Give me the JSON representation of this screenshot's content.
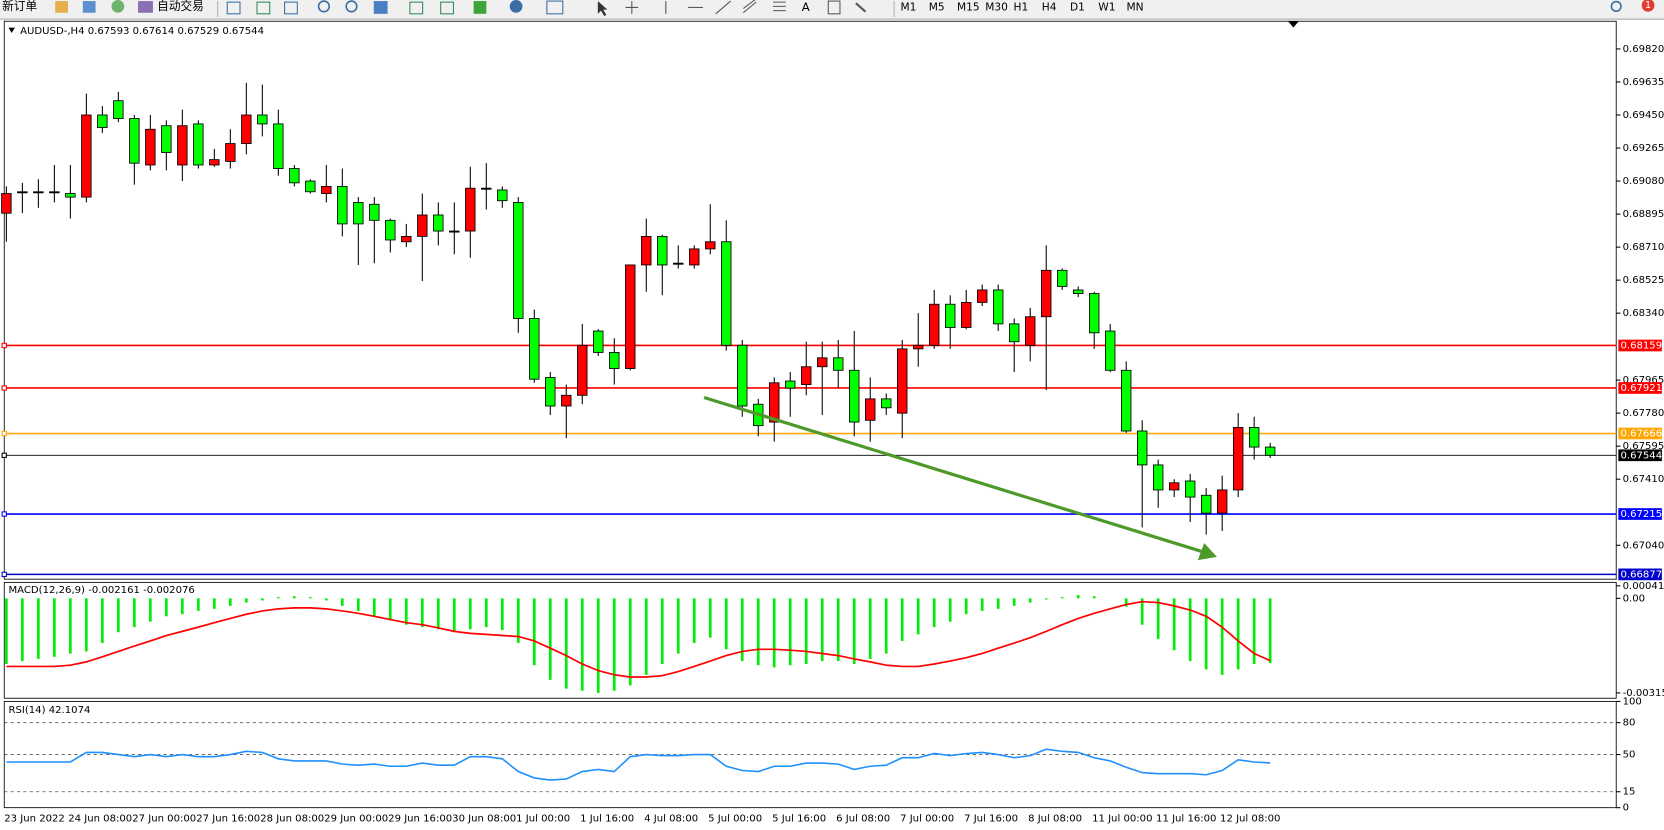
{
  "toolbar": {
    "new_order": "新订单",
    "auto_trading": "自动交易",
    "timeframes": [
      "M1",
      "M5",
      "M15",
      "M30",
      "H1",
      "H4",
      "D1",
      "W1",
      "MN"
    ],
    "notifications": "1"
  },
  "chart_data": [
    {
      "type": "candlestick",
      "title": "AUDUSD-,H4 0.67593 0.67614 0.67529 0.67544",
      "x": [
        "23 Jun 2022",
        null,
        null,
        null,
        "24 Jun 08:00",
        null,
        null,
        null,
        "27 Jun 00:00",
        null,
        null,
        null,
        "27 Jun 16:00",
        null,
        null,
        null,
        "28 Jun 08:00",
        null,
        null,
        null,
        "29 Jun 00:00",
        null,
        null,
        null,
        "29 Jun 16:00",
        null,
        null,
        null,
        "30 Jun 08:00",
        null,
        null,
        null,
        "1 Jul 00:00",
        null,
        null,
        null,
        "1 Jul 16:00",
        null,
        null,
        null,
        "4 Jul 08:00",
        null,
        null,
        null,
        "5 Jul 00:00",
        null,
        null,
        null,
        "5 Jul 16:00",
        null,
        null,
        null,
        "6 Jul 08:00",
        null,
        null,
        null,
        "7 Jul 00:00",
        null,
        null,
        null,
        "7 Jul 16:00",
        null,
        null,
        null,
        "8 Jul 08:00",
        null,
        null,
        null,
        "11 Jul 00:00",
        null,
        null,
        null,
        "11 Jul 16:00",
        null,
        null,
        null,
        "12 Jul 08:00",
        null,
        null,
        null
      ],
      "open": [
        0.689,
        0.6902,
        0.6902,
        0.6902,
        0.6901,
        0.6899,
        0.6945,
        0.6953,
        0.6943,
        0.6917,
        0.6939,
        0.6917,
        0.694,
        0.6917,
        0.6919,
        0.6929,
        0.6945,
        0.694,
        0.6915,
        0.6908,
        0.6901,
        0.6905,
        0.6896,
        0.6895,
        0.6886,
        0.6874,
        0.6877,
        0.6889,
        0.688,
        0.688,
        0.6904,
        0.6903,
        0.6896,
        0.6831,
        0.6798,
        0.6782,
        0.6788,
        0.6824,
        0.6812,
        0.6803,
        0.6861,
        0.6877,
        0.6862,
        0.6861,
        0.687,
        0.6874,
        0.6816,
        0.6783,
        0.6773,
        0.6796,
        0.6794,
        0.6804,
        0.6809,
        0.6802,
        0.6774,
        0.6786,
        0.6778,
        0.6814,
        0.6816,
        0.6839,
        0.6826,
        0.684,
        0.6847,
        0.6828,
        0.6816,
        0.6832,
        0.6858,
        0.6847,
        0.6845,
        0.6824,
        0.6802,
        0.6768,
        0.6749,
        0.6735,
        0.674,
        0.6732,
        0.6722,
        0.6735,
        0.677,
        0.6759
      ],
      "high": [
        0.6905,
        0.6907,
        0.6909,
        0.6917,
        0.6917,
        0.6957,
        0.695,
        0.6958,
        0.6945,
        0.6945,
        0.6942,
        0.6948,
        0.6942,
        0.6926,
        0.6937,
        0.6963,
        0.6962,
        0.6948,
        0.6917,
        0.6909,
        0.6917,
        0.6915,
        0.6899,
        0.6899,
        0.6887,
        0.6884,
        0.6901,
        0.6896,
        0.6896,
        0.6916,
        0.6918,
        0.6905,
        0.6899,
        0.6836,
        0.6801,
        0.6794,
        0.6828,
        0.6825,
        0.682,
        0.6861,
        0.6887,
        0.6878,
        0.6872,
        0.6872,
        0.6895,
        0.6886,
        0.6819,
        0.6786,
        0.6798,
        0.6801,
        0.6818,
        0.6818,
        0.6819,
        0.6824,
        0.6798,
        0.6789,
        0.6819,
        0.6834,
        0.6847,
        0.6844,
        0.6847,
        0.685,
        0.685,
        0.6831,
        0.6837,
        0.6872,
        0.6859,
        0.6849,
        0.6846,
        0.6828,
        0.6807,
        0.6774,
        0.6752,
        0.6741,
        0.6744,
        0.6736,
        0.6743,
        0.6778,
        0.6776,
        0.67614
      ],
      "low": [
        0.6874,
        0.689,
        0.6893,
        0.6896,
        0.6887,
        0.6896,
        0.6935,
        0.6941,
        0.6906,
        0.6914,
        0.6914,
        0.6908,
        0.6915,
        0.6916,
        0.6915,
        0.6923,
        0.6933,
        0.6911,
        0.6905,
        0.6901,
        0.6896,
        0.6877,
        0.6861,
        0.6862,
        0.6868,
        0.6871,
        0.6852,
        0.6872,
        0.6867,
        0.6865,
        0.6892,
        0.6893,
        0.6823,
        0.6795,
        0.6777,
        0.6764,
        0.6783,
        0.681,
        0.6794,
        0.6802,
        0.6846,
        0.6844,
        0.6859,
        0.6859,
        0.6867,
        0.6813,
        0.6776,
        0.6765,
        0.6762,
        0.6776,
        0.6788,
        0.6777,
        0.6792,
        0.6765,
        0.6762,
        0.6777,
        0.6764,
        0.6804,
        0.6814,
        0.6814,
        0.6825,
        0.6838,
        0.6824,
        0.6801,
        0.6807,
        0.6791,
        0.6847,
        0.6843,
        0.6814,
        0.6801,
        0.6767,
        0.6714,
        0.6725,
        0.6731,
        0.6717,
        0.671,
        0.6712,
        0.6731,
        0.6752,
        0.67529
      ],
      "close": [
        0.6901,
        0.6902,
        0.6902,
        0.6902,
        0.6899,
        0.6945,
        0.6938,
        0.6943,
        0.6918,
        0.6937,
        0.6924,
        0.6939,
        0.6917,
        0.692,
        0.6929,
        0.6945,
        0.694,
        0.6915,
        0.6907,
        0.6902,
        0.6905,
        0.6884,
        0.6884,
        0.6886,
        0.6875,
        0.6877,
        0.6889,
        0.688,
        0.688,
        0.6904,
        0.6904,
        0.6897,
        0.6831,
        0.6797,
        0.6782,
        0.6788,
        0.6816,
        0.6812,
        0.6803,
        0.6861,
        0.6877,
        0.6861,
        0.6862,
        0.687,
        0.6874,
        0.6816,
        0.6782,
        0.6771,
        0.6795,
        0.6792,
        0.6804,
        0.6809,
        0.6802,
        0.6773,
        0.6786,
        0.6781,
        0.6814,
        0.6816,
        0.6839,
        0.6826,
        0.684,
        0.6847,
        0.6828,
        0.6818,
        0.6832,
        0.6858,
        0.6849,
        0.6845,
        0.6823,
        0.6802,
        0.6768,
        0.6749,
        0.6735,
        0.6739,
        0.6731,
        0.6722,
        0.6735,
        0.677,
        0.6759,
        0.67544
      ],
      "up_color": "#ff0000",
      "down_color": "#00ff00",
      "ylim": [
        0.6685,
        0.69975
      ],
      "yticks": [
        {
          "value": 0.6982,
          "label": "0.69820"
        },
        0.69635,
        {
          "value": 0.6945,
          "label": "0.69450"
        },
        0.69265,
        {
          "value": 0.6908,
          "label": "0.69080"
        },
        0.68895,
        {
          "value": 0.6871,
          "label": "0.68710"
        },
        0.68525,
        {
          "value": 0.6834,
          "label": "0.68340"
        },
        0.67965,
        {
          "value": 0.6778,
          "label": "0.67780"
        },
        0.67595,
        {
          "value": 0.6741,
          "label": "0.67410"
        },
        {
          "value": 0.6704,
          "label": "0.67040"
        }
      ],
      "hlines": [
        {
          "value": 0.68159,
          "color": "#ff0000"
        },
        {
          "value": 0.67921,
          "color": "#ff0000"
        },
        {
          "value": 0.67666,
          "color": "#ffa500"
        },
        {
          "value": 0.67544,
          "color": "#000000"
        },
        {
          "value": 0.67215,
          "color": "#0000ff"
        },
        {
          "value": 0.66877,
          "color": "#0000cc"
        }
      ]
    },
    {
      "type": "macd",
      "title": "MACD(12,26,9) -0.002161 -0.002076",
      "values": [
        -0.00219,
        -0.00209,
        -0.00202,
        -0.00195,
        -0.00184,
        -0.00177,
        -0.00149,
        -0.00113,
        -0.00096,
        -0.00078,
        -0.0006,
        -0.00053,
        -0.00042,
        -0.00035,
        -0.00025,
        -0.00014,
        -7e-05,
        4e-05,
        7e-05,
        4e-05,
        -7e-05,
        -0.00025,
        -0.00042,
        -0.0006,
        -0.00074,
        -0.00088,
        -0.00096,
        -0.00103,
        -0.0011,
        -0.00103,
        -0.00096,
        -0.00106,
        -0.00149,
        -0.00223,
        -0.00272,
        -0.00301,
        -0.00308,
        -0.00315,
        -0.00308,
        -0.0029,
        -0.00255,
        -0.00219,
        -0.00184,
        -0.00149,
        -0.00131,
        -0.0017,
        -0.00209,
        -0.00223,
        -0.0023,
        -0.00223,
        -0.00219,
        -0.00209,
        -0.00209,
        -0.00219,
        -0.00202,
        -0.00184,
        -0.00142,
        -0.0012,
        -0.00096,
        -0.00078,
        -0.00053,
        -0.00042,
        -0.00035,
        -0.00025,
        -0.00014,
        -4e-05,
        4e-05,
        0.00011,
        7e-05,
        0,
        -0.00028,
        -0.00088,
        -0.00135,
        -0.00173,
        -0.00209,
        -0.00237,
        -0.00255,
        -0.00237,
        -0.00219,
        -0.002161
      ],
      "signal": [
        -0.00227,
        -0.00227,
        -0.00227,
        -0.00227,
        -0.00223,
        -0.00212,
        -0.00195,
        -0.00177,
        -0.00159,
        -0.00142,
        -0.00124,
        -0.0011,
        -0.00096,
        -0.00081,
        -0.00067,
        -0.00053,
        -0.00042,
        -0.00035,
        -0.00032,
        -0.00032,
        -0.00035,
        -0.00042,
        -0.0005,
        -0.0006,
        -0.00071,
        -0.00081,
        -0.00088,
        -0.00099,
        -0.0011,
        -0.00117,
        -0.0012,
        -0.00124,
        -0.00127,
        -0.00142,
        -0.00166,
        -0.00191,
        -0.00219,
        -0.00241,
        -0.00255,
        -0.00262,
        -0.00262,
        -0.00258,
        -0.00244,
        -0.00227,
        -0.00209,
        -0.00191,
        -0.00177,
        -0.0017,
        -0.0017,
        -0.00173,
        -0.00177,
        -0.00184,
        -0.00191,
        -0.00202,
        -0.00212,
        -0.00223,
        -0.00227,
        -0.00227,
        -0.00219,
        -0.00209,
        -0.00198,
        -0.00184,
        -0.00166,
        -0.00149,
        -0.00131,
        -0.0011,
        -0.00088,
        -0.00067,
        -0.0005,
        -0.00035,
        -0.00021,
        -0.00011,
        -0.00014,
        -0.00025,
        -0.00039,
        -0.0006,
        -0.00096,
        -0.00142,
        -0.00184,
        -0.002076
      ],
      "bar_color": "#00ee00",
      "line_color": "#ff0000",
      "ylim": [
        -0.00333,
        0.000496
      ],
      "yticks": [
        0.000416,
        {
          "value": 0,
          "label": "0.00"
        },
        -0.003153
      ]
    },
    {
      "type": "line",
      "title": "RSI(14) 42.1074",
      "values": [
        43,
        43,
        43,
        43,
        43,
        52,
        52,
        50,
        48,
        50,
        48,
        50,
        48,
        48,
        50,
        53,
        52,
        46,
        44,
        44,
        44,
        41,
        40,
        41,
        39,
        39,
        42,
        40,
        40,
        48,
        48,
        46,
        34,
        28,
        26,
        27,
        34,
        36,
        34,
        48,
        50,
        49,
        49,
        50,
        50,
        39,
        35,
        34,
        39,
        39,
        42,
        42,
        41,
        36,
        39,
        40,
        47,
        47,
        51,
        49,
        51,
        52,
        50,
        47,
        49,
        55,
        53,
        52,
        47,
        44,
        38,
        33,
        32,
        32,
        32,
        31,
        35,
        45,
        43,
        42.1074
      ],
      "color": "#1e90ff",
      "ylim": [
        0,
        100
      ],
      "yticks": [
        100,
        80,
        50,
        15,
        0
      ],
      "levels": [
        80,
        50,
        15
      ]
    }
  ]
}
